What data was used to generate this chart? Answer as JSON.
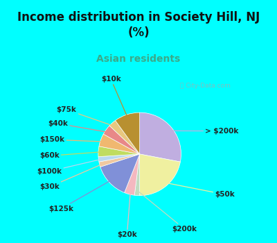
{
  "title": "Income distribution in Society Hill, NJ\n(%)",
  "subtitle": "Asian residents",
  "title_color": "#111111",
  "subtitle_color": "#3aaa8a",
  "bg_cyan": "#00ffff",
  "bg_chart": "#dff0e8",
  "watermark": "City-Data.com",
  "slices": [
    {
      "label": "> $200k",
      "value": 28,
      "color": "#c0aee0"
    },
    {
      "label": "$50k",
      "value": 22,
      "color": "#f0f0a0"
    },
    {
      "label": "$200k",
      "value": 2,
      "color": "#c0dcc0"
    },
    {
      "label": "$20k",
      "value": 4,
      "color": "#f4b8c0"
    },
    {
      "label": "$125k",
      "value": 14,
      "color": "#8090d8"
    },
    {
      "label": "$30k",
      "value": 2,
      "color": "#f0c8a0"
    },
    {
      "label": "$100k",
      "value": 2,
      "color": "#b8d8f0"
    },
    {
      "label": "$60k",
      "value": 4,
      "color": "#c0dc60"
    },
    {
      "label": "$150k",
      "value": 5,
      "color": "#f0b870"
    },
    {
      "label": "$40k",
      "value": 4,
      "color": "#e88888"
    },
    {
      "label": "$75k",
      "value": 3,
      "color": "#e8c880"
    },
    {
      "label": "$10k",
      "value": 10,
      "color": "#b89030"
    }
  ],
  "label_fontsize": 7.5,
  "title_fontsize": 12,
  "subtitle_fontsize": 10
}
